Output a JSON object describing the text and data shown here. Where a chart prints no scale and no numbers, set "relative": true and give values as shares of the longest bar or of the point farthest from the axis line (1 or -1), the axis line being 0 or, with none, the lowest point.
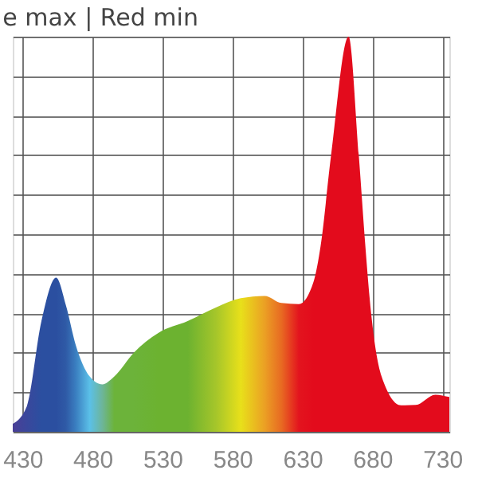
{
  "chart_data": {
    "type": "area",
    "title": "e max | Red min",
    "relative": true,
    "grid": true,
    "x": [
      423,
      433,
      443.5,
      454,
      461,
      468,
      478,
      487,
      495.6,
      509.5,
      527,
      548,
      568.5,
      586,
      603,
      615,
      627.5,
      638,
      643,
      650.5,
      663,
      670.3,
      675,
      678,
      686.6,
      700.5,
      711,
      725,
      735
    ],
    "values": [
      0.02,
      0.064,
      0.28,
      0.39,
      0.32,
      0.22,
      0.14,
      0.12,
      0.14,
      0.2,
      0.25,
      0.28,
      0.315,
      0.338,
      0.344,
      0.326,
      0.323,
      0.38,
      0.47,
      0.7,
      1.0,
      0.7,
      0.47,
      0.34,
      0.14,
      0.067,
      0.068,
      0.094,
      0.088
    ],
    "colors": [
      "#4a3f96",
      "#3a479c",
      "#2b4fa0",
      "#2b4fa0",
      "#2f5aa6",
      "#3a7ec0",
      "#5bc0e8",
      "#6db59a",
      "#6cb33a",
      "#6cb33a",
      "#6cb230",
      "#6cb230",
      "#a6c62a",
      "#e8e01a",
      "#eba024",
      "#e86a22",
      "#e3141e",
      "#e30b1c",
      "#e30b1c",
      "#e30b1c",
      "#e30b1c",
      "#e30b1c",
      "#e30b1c",
      "#e30b1c",
      "#e30b1c",
      "#e30b1c",
      "#e30b1c",
      "#e30b1c",
      "#e30b1c"
    ],
    "xlim": [
      423,
      735
    ],
    "xticks": [
      430,
      480,
      530,
      580,
      630,
      680,
      730
    ]
  }
}
